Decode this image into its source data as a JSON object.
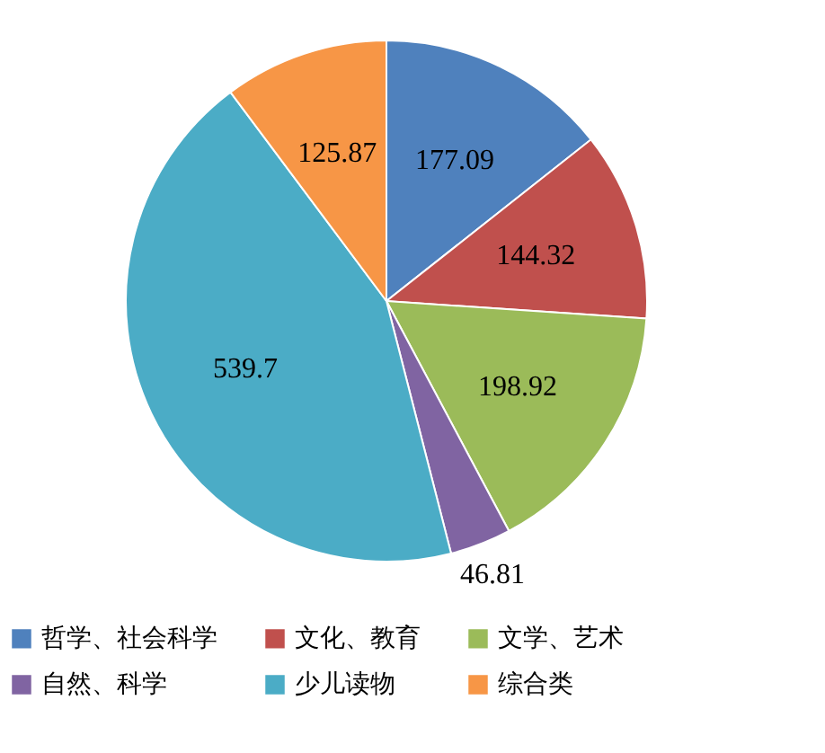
{
  "chart_data": {
    "type": "pie",
    "categories": [
      "哲学、社会科学",
      "文化、教育",
      "文学、艺术",
      "自然、科学",
      "少儿读物",
      "综合类"
    ],
    "values": [
      177.09,
      144.32,
      198.92,
      46.81,
      539.7,
      125.87
    ],
    "colors": [
      "#4f81bd",
      "#c0504d",
      "#9bbb59",
      "#8064a2",
      "#4bacc6",
      "#f79646"
    ],
    "data_labels": true,
    "legend": "bottom"
  }
}
